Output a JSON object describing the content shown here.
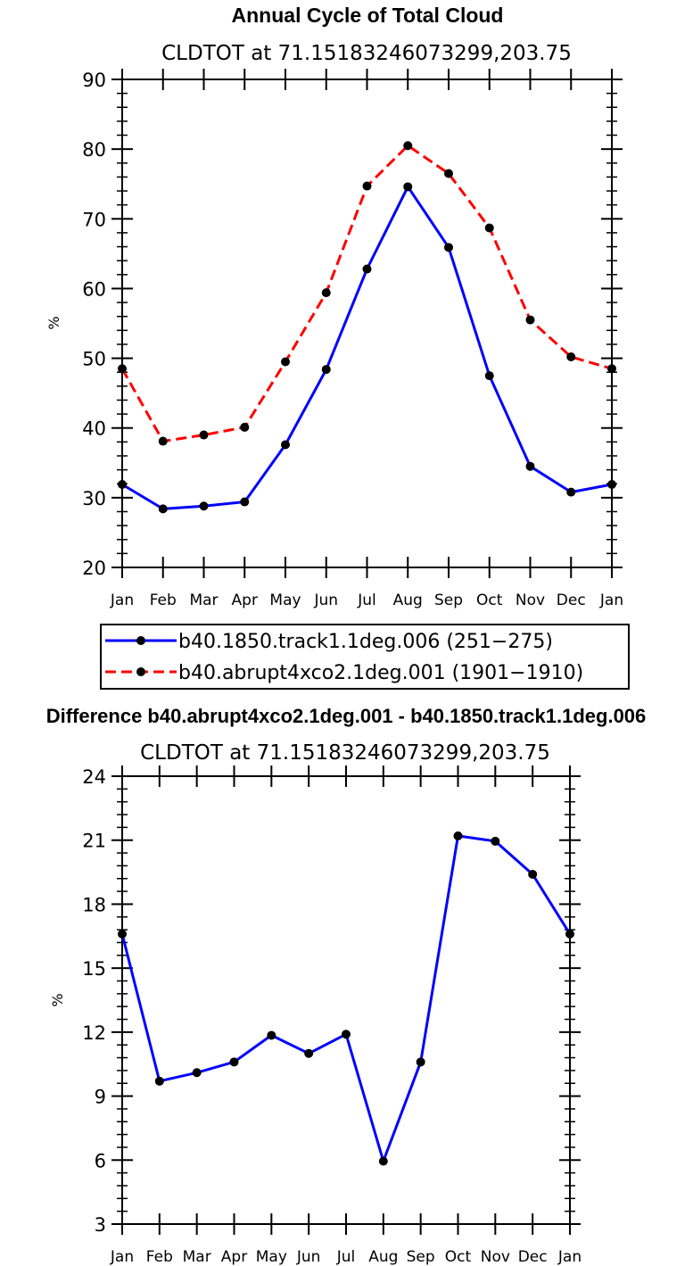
{
  "chart_data": [
    {
      "type": "line",
      "title": "Annual Cycle of Total Cloud",
      "subtitle": "CLDTOT at 71.15183246073299,203.75",
      "xlabel": "",
      "ylabel": "%",
      "categories": [
        "Jan",
        "Feb",
        "Mar",
        "Apr",
        "May",
        "Jun",
        "Jul",
        "Aug",
        "Sep",
        "Oct",
        "Nov",
        "Dec",
        "Jan"
      ],
      "ylim": [
        20,
        90
      ],
      "yticks": [
        "20",
        "30",
        "40",
        "50",
        "60",
        "70",
        "80",
        "90"
      ],
      "grid": false,
      "legend_position": "bottom",
      "series": [
        {
          "name": "b40.1850.track1.1deg.006 (251−275)",
          "color": "#0000ff",
          "style": "solid",
          "values": [
            31.9,
            28.4,
            28.8,
            29.4,
            37.6,
            48.4,
            62.8,
            74.6,
            65.9,
            47.5,
            34.5,
            30.8,
            31.9
          ]
        },
        {
          "name": "b40.abrupt4xco2.1deg.001 (1901−1910)",
          "color": "#ff0000",
          "style": "dashed",
          "values": [
            48.5,
            38.1,
            39.0,
            40.1,
            49.5,
            59.4,
            74.7,
            80.5,
            76.5,
            68.7,
            55.5,
            50.2,
            48.5
          ]
        }
      ]
    },
    {
      "type": "line",
      "title": "Difference b40.abrupt4xco2.1deg.001 - b40.1850.track1.1deg.006",
      "subtitle": "CLDTOT at 71.15183246073299,203.75",
      "xlabel": "",
      "ylabel": "%",
      "categories": [
        "Jan",
        "Feb",
        "Mar",
        "Apr",
        "May",
        "Jun",
        "Jul",
        "Aug",
        "Sep",
        "Oct",
        "Nov",
        "Dec",
        "Jan"
      ],
      "ylim": [
        3,
        24
      ],
      "yticks": [
        "3",
        "6",
        "9",
        "12",
        "15",
        "18",
        "21",
        "24"
      ],
      "grid": false,
      "series": [
        {
          "color": "#0000ff",
          "style": "solid",
          "values": [
            16.6,
            9.7,
            10.1,
            10.6,
            11.85,
            11.0,
            11.9,
            5.95,
            10.6,
            21.2,
            20.95,
            19.4,
            16.6
          ]
        }
      ]
    }
  ]
}
